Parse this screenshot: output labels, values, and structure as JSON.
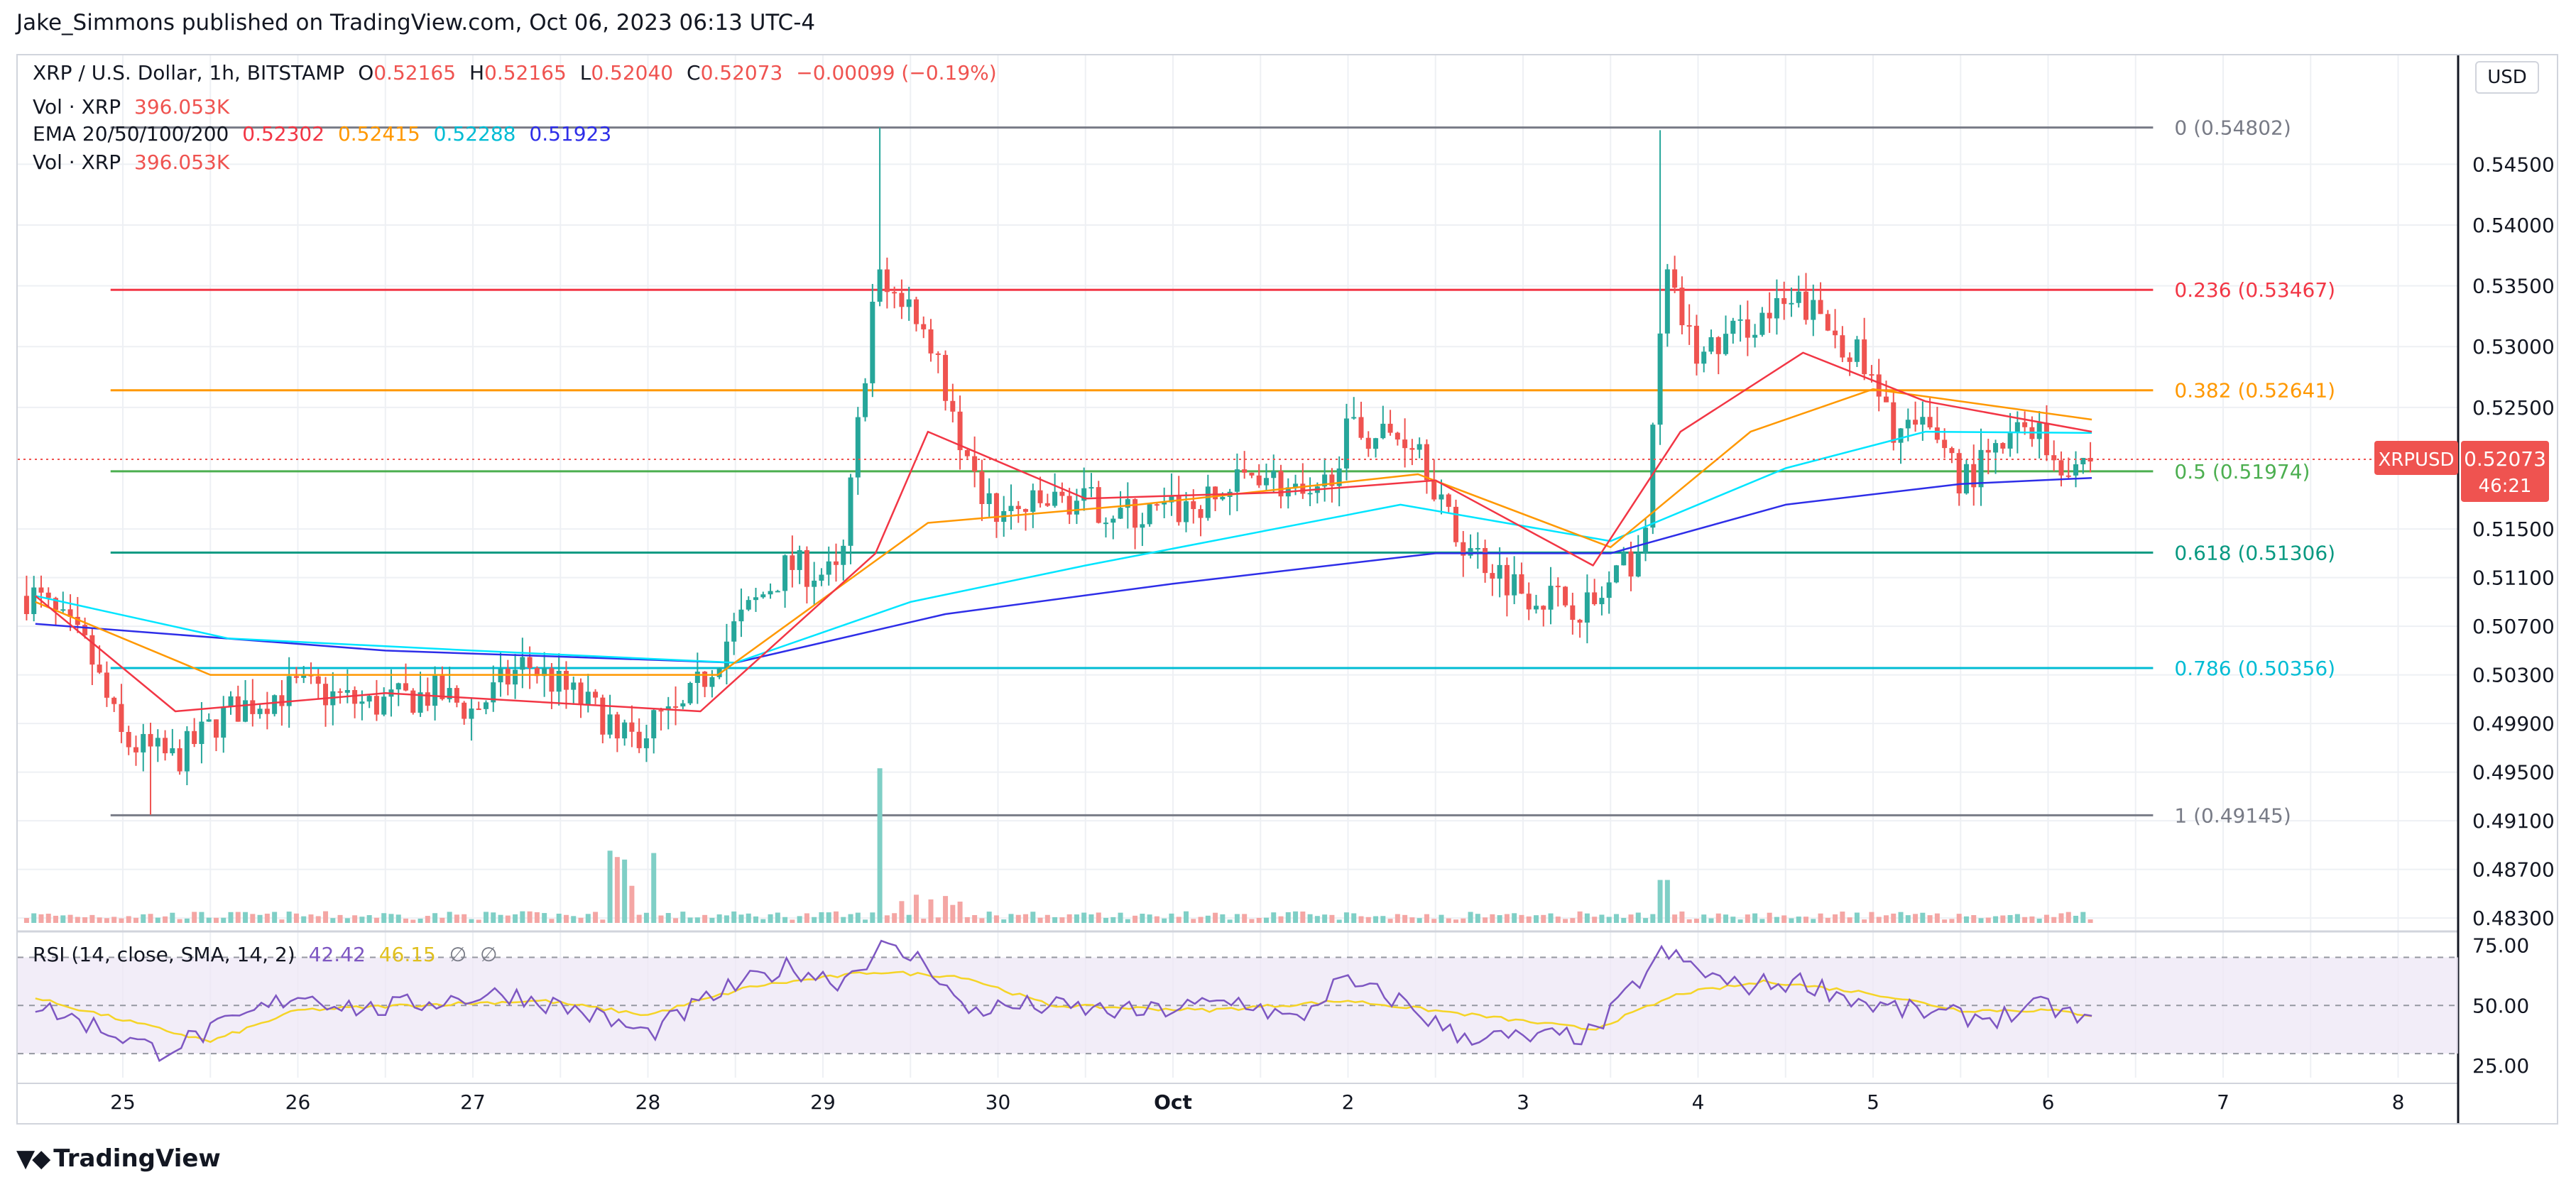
{
  "publisher": "Jake_Simmons published on TradingView.com, Oct 06, 2023 06:13 UTC-4",
  "brand": "TradingView",
  "currency_button": "USD",
  "legend": {
    "symbol": "XRP / U.S. Dollar, 1h, BITSTAMP",
    "o_label": "O",
    "o_value": "0.52165",
    "h_label": "H",
    "h_value": "0.52165",
    "l_label": "L",
    "l_value": "0.52040",
    "c_label": "C",
    "c_value": "0.52073",
    "change": "−0.00099 (−0.19%)",
    "vol_label": "Vol · XRP",
    "vol_value": "396.053K",
    "ema_label": "EMA 20/50/100/200",
    "ema20": "0.52302",
    "ema50": "0.52415",
    "ema100": "0.52288",
    "ema200": "0.51923",
    "vol2_label": "Vol · XRP",
    "vol2_value": "396.053K"
  },
  "rsi_legend": {
    "label": "RSI (14, close, SMA, 14, 2)",
    "rsi": "42.42",
    "sma": "46.15",
    "extra1": "∅",
    "extra2": "∅"
  },
  "price_label": {
    "symbol": "XRPUSD",
    "price": "0.52073",
    "countdown": "46:21"
  },
  "colors": {
    "up": "#26a69a",
    "down": "#ef5350",
    "ema20": "#f23645",
    "ema50": "#ff9800",
    "ema100": "#00e5ff",
    "ema200": "#2e2ee8",
    "rsi": "#7e57c2",
    "rsi_sma": "#f5d427"
  },
  "chart_data": [
    {
      "type": "candlestick",
      "title": "XRP / U.S. Dollar, 1h, BITSTAMP",
      "x_ticks": [
        "25",
        "26",
        "27",
        "28",
        "29",
        "30",
        "Oct",
        "2",
        "3",
        "4",
        "5",
        "6",
        "7",
        "8"
      ],
      "y_ticks": [
        "0.54500",
        "0.54000",
        "0.53500",
        "0.53000",
        "0.52500",
        "0.51500",
        "0.51100",
        "0.50700",
        "0.50300",
        "0.49900",
        "0.49500",
        "0.49100",
        "0.48700",
        "0.48300"
      ],
      "ylim": [
        0.4826,
        0.5515
      ],
      "fibonacci": [
        {
          "label": "0 (0.54802)",
          "level": 0.54802,
          "color": "#787b86"
        },
        {
          "label": "0.236 (0.53467)",
          "level": 0.53467,
          "color": "#f23645"
        },
        {
          "label": "0.382 (0.52641)",
          "level": 0.52641,
          "color": "#ff9800"
        },
        {
          "label": "0.5 (0.51974)",
          "level": 0.51974,
          "color": "#4caf50"
        },
        {
          "label": "0.618 (0.51306)",
          "level": 0.51306,
          "color": "#089981"
        },
        {
          "label": "0.786 (0.50356)",
          "level": 0.50356,
          "color": "#00bcd4"
        },
        {
          "label": "1 (0.49145)",
          "level": 0.49145,
          "color": "#787b86"
        }
      ],
      "close_path": [
        [
          24.5,
          0.5095
        ],
        [
          24.8,
          0.505
        ],
        [
          25.0,
          0.4975
        ],
        [
          25.3,
          0.496
        ],
        [
          25.6,
          0.5
        ],
        [
          26.0,
          0.502
        ],
        [
          26.4,
          0.5005
        ],
        [
          26.8,
          0.5015
        ],
        [
          27.0,
          0.5
        ],
        [
          27.3,
          0.504
        ],
        [
          27.6,
          0.501
        ],
        [
          27.9,
          0.498
        ],
        [
          28.2,
          0.5
        ],
        [
          28.5,
          0.507
        ],
        [
          28.8,
          0.512
        ],
        [
          29.1,
          0.511
        ],
        [
          29.3,
          0.5355
        ],
        [
          29.5,
          0.5335
        ],
        [
          29.65,
          0.53
        ],
        [
          29.8,
          0.52
        ],
        [
          30.0,
          0.516
        ],
        [
          30.4,
          0.5175
        ],
        [
          30.8,
          0.516
        ],
        [
          31.2,
          0.517
        ],
        [
          31.5,
          0.52
        ],
        [
          31.8,
          0.5165
        ],
        [
          32.0,
          0.523
        ],
        [
          32.4,
          0.5225
        ],
        [
          32.6,
          0.5145
        ],
        [
          33.0,
          0.51
        ],
        [
          33.4,
          0.5085
        ],
        [
          33.7,
          0.514
        ],
        [
          33.8,
          0.536
        ],
        [
          34.0,
          0.529
        ],
        [
          34.3,
          0.532
        ],
        [
          34.6,
          0.5335
        ],
        [
          34.9,
          0.5295
        ],
        [
          35.1,
          0.5235
        ],
        [
          35.4,
          0.5225
        ],
        [
          35.5,
          0.519
        ],
        [
          35.7,
          0.521
        ],
        [
          35.9,
          0.524
        ],
        [
          36.05,
          0.5205
        ],
        [
          36.25,
          0.5207
        ]
      ],
      "ema20_path": [
        [
          24.5,
          0.5095
        ],
        [
          25.3,
          0.5
        ],
        [
          26.5,
          0.5015
        ],
        [
          28.3,
          0.5
        ],
        [
          29.3,
          0.513
        ],
        [
          29.6,
          0.523
        ],
        [
          30.5,
          0.5175
        ],
        [
          31.6,
          0.518
        ],
        [
          32.5,
          0.519
        ],
        [
          33.4,
          0.512
        ],
        [
          33.9,
          0.523
        ],
        [
          34.6,
          0.5295
        ],
        [
          35.3,
          0.5255
        ],
        [
          36.25,
          0.523
        ]
      ],
      "ema50_path": [
        [
          24.5,
          0.509
        ],
        [
          25.5,
          0.503
        ],
        [
          27.0,
          0.503
        ],
        [
          28.4,
          0.503
        ],
        [
          29.6,
          0.5155
        ],
        [
          30.8,
          0.517
        ],
        [
          32.4,
          0.5195
        ],
        [
          33.5,
          0.5135
        ],
        [
          34.3,
          0.523
        ],
        [
          35.0,
          0.5265
        ],
        [
          36.25,
          0.524
        ]
      ],
      "ema100_path": [
        [
          24.5,
          0.5095
        ],
        [
          25.6,
          0.506
        ],
        [
          27.0,
          0.505
        ],
        [
          28.5,
          0.504
        ],
        [
          29.5,
          0.509
        ],
        [
          30.5,
          0.512
        ],
        [
          32.3,
          0.517
        ],
        [
          33.5,
          0.514
        ],
        [
          34.5,
          0.52
        ],
        [
          35.3,
          0.523
        ],
        [
          36.25,
          0.5229
        ]
      ],
      "ema200_path": [
        [
          24.5,
          0.5072
        ],
        [
          26.5,
          0.505
        ],
        [
          28.5,
          0.504
        ],
        [
          29.7,
          0.508
        ],
        [
          31.0,
          0.5105
        ],
        [
          32.5,
          0.513
        ],
        [
          33.5,
          0.513
        ],
        [
          34.5,
          0.517
        ],
        [
          35.5,
          0.5187
        ],
        [
          36.25,
          0.5192
        ]
      ],
      "volume_spikes": [
        {
          "x": 29.33,
          "v": 396
        },
        {
          "x": 27.9,
          "v": 230
        },
        {
          "x": 33.8,
          "v": 110
        }
      ]
    },
    {
      "type": "line",
      "title": "RSI (14, close, SMA, 14, 2)",
      "y_ticks": [
        "75.00",
        "50.00",
        "25.00"
      ],
      "ylim": [
        20,
        79
      ],
      "bands": [
        30,
        50,
        70
      ],
      "rsi_path": [
        [
          24.5,
          50
        ],
        [
          24.9,
          40
        ],
        [
          25.2,
          31
        ],
        [
          25.6,
          42
        ],
        [
          26.0,
          55
        ],
        [
          26.4,
          48
        ],
        [
          26.8,
          52
        ],
        [
          27.2,
          55
        ],
        [
          27.6,
          48
        ],
        [
          28.0,
          38
        ],
        [
          28.4,
          55
        ],
        [
          28.8,
          66
        ],
        [
          29.1,
          60
        ],
        [
          29.33,
          74
        ],
        [
          29.6,
          68
        ],
        [
          29.8,
          48
        ],
        [
          30.2,
          50
        ],
        [
          30.8,
          47
        ],
        [
          31.4,
          52
        ],
        [
          31.7,
          43
        ],
        [
          31.95,
          60
        ],
        [
          32.3,
          52
        ],
        [
          32.6,
          38
        ],
        [
          33.0,
          36
        ],
        [
          33.4,
          38
        ],
        [
          33.8,
          72
        ],
        [
          34.2,
          58
        ],
        [
          34.6,
          60
        ],
        [
          35.0,
          50
        ],
        [
          35.4,
          46
        ],
        [
          35.7,
          45
        ],
        [
          36.0,
          50
        ],
        [
          36.25,
          42
        ]
      ],
      "sma_path": [
        [
          24.5,
          53
        ],
        [
          25.0,
          44
        ],
        [
          25.5,
          35
        ],
        [
          26.0,
          48
        ],
        [
          26.6,
          50
        ],
        [
          27.4,
          52
        ],
        [
          28.0,
          46
        ],
        [
          28.6,
          58
        ],
        [
          29.3,
          64
        ],
        [
          29.8,
          62
        ],
        [
          30.3,
          50
        ],
        [
          31.2,
          48
        ],
        [
          32.0,
          52
        ],
        [
          32.6,
          47
        ],
        [
          33.4,
          40
        ],
        [
          33.9,
          55
        ],
        [
          34.4,
          60
        ],
        [
          35.0,
          55
        ],
        [
          35.5,
          48
        ],
        [
          36.0,
          48
        ],
        [
          36.25,
          46
        ]
      ]
    }
  ]
}
